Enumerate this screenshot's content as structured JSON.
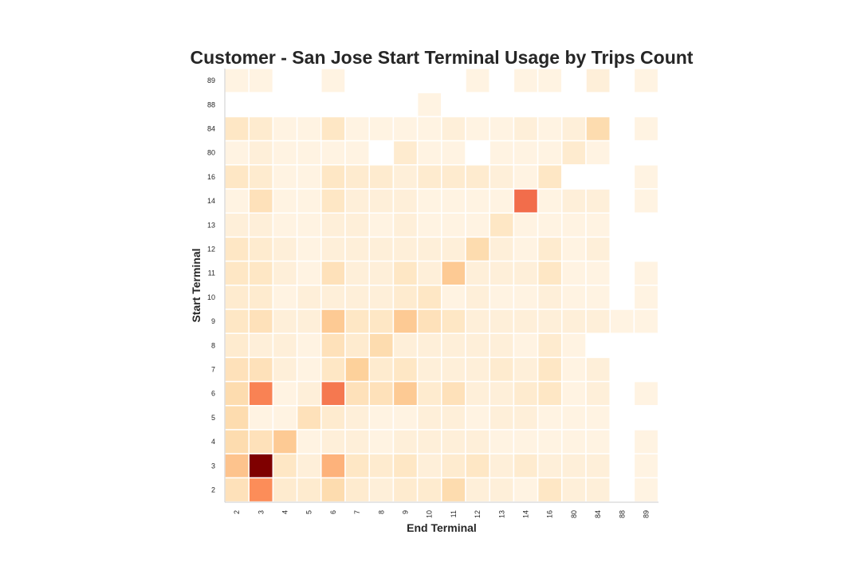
{
  "chart_data": {
    "type": "heatmap",
    "title": "Customer - San Jose Start Terminal Usage by Trips Count",
    "xlabel": "End Terminal",
    "ylabel": "Start Terminal",
    "x_categories": [
      "2",
      "3",
      "4",
      "5",
      "6",
      "7",
      "8",
      "9",
      "10",
      "11",
      "12",
      "13",
      "14",
      "16",
      "80",
      "84",
      "88",
      "89"
    ],
    "y_categories": [
      "89",
      "88",
      "84",
      "80",
      "16",
      "14",
      "13",
      "12",
      "11",
      "10",
      "9",
      "8",
      "7",
      "6",
      "5",
      "4",
      "3",
      "2"
    ],
    "values": [
      [
        1,
        1,
        null,
        null,
        1,
        null,
        null,
        null,
        null,
        null,
        1,
        null,
        1,
        1,
        null,
        2,
        null,
        1
      ],
      [
        null,
        null,
        null,
        null,
        null,
        null,
        null,
        null,
        1,
        null,
        null,
        null,
        null,
        null,
        null,
        null,
        null,
        null
      ],
      [
        4,
        3,
        1,
        1,
        4,
        1,
        1,
        1,
        1,
        2,
        1,
        1,
        2,
        1,
        2,
        6,
        null,
        1
      ],
      [
        1,
        2,
        1,
        1,
        1,
        1,
        null,
        3,
        1,
        1,
        null,
        1,
        1,
        1,
        3,
        1,
        null,
        null
      ],
      [
        4,
        3,
        1,
        1,
        4,
        3,
        3,
        2,
        3,
        3,
        3,
        2,
        1,
        4,
        null,
        null,
        null,
        1
      ],
      [
        1,
        5,
        1,
        1,
        4,
        2,
        2,
        2,
        1,
        1,
        1,
        1,
        18,
        1,
        2,
        2,
        null,
        1
      ],
      [
        2,
        2,
        1,
        1,
        2,
        2,
        1,
        2,
        1,
        1,
        1,
        4,
        1,
        1,
        1,
        1,
        null,
        null
      ],
      [
        4,
        3,
        2,
        1,
        2,
        2,
        2,
        2,
        2,
        2,
        6,
        2,
        1,
        3,
        1,
        2,
        null,
        null
      ],
      [
        4,
        4,
        2,
        1,
        5,
        2,
        2,
        4,
        2,
        9,
        2,
        2,
        2,
        4,
        1,
        1,
        null,
        1
      ],
      [
        3,
        3,
        1,
        2,
        2,
        2,
        2,
        3,
        4,
        1,
        2,
        1,
        1,
        2,
        1,
        1,
        null,
        1
      ],
      [
        4,
        5,
        2,
        2,
        9,
        4,
        4,
        9,
        5,
        4,
        2,
        2,
        2,
        2,
        2,
        2,
        1,
        1
      ],
      [
        3,
        2,
        2,
        1,
        5,
        3,
        6,
        2,
        2,
        2,
        2,
        2,
        1,
        3,
        1,
        null,
        null,
        null
      ],
      [
        5,
        5,
        2,
        1,
        4,
        8,
        3,
        4,
        2,
        2,
        2,
        3,
        2,
        4,
        1,
        2,
        null,
        null
      ],
      [
        6,
        16,
        1,
        2,
        17,
        5,
        5,
        9,
        3,
        5,
        2,
        2,
        3,
        4,
        1,
        2,
        null,
        1
      ],
      [
        6,
        1,
        1,
        5,
        3,
        2,
        1,
        1,
        2,
        2,
        1,
        2,
        2,
        1,
        1,
        1,
        null,
        null
      ],
      [
        6,
        5,
        9,
        1,
        2,
        2,
        1,
        2,
        2,
        2,
        2,
        1,
        1,
        1,
        1,
        1,
        null,
        1
      ],
      [
        10,
        30,
        4,
        2,
        12,
        4,
        3,
        4,
        2,
        3,
        4,
        2,
        3,
        2,
        2,
        2,
        null,
        1
      ],
      [
        5,
        15,
        3,
        3,
        6,
        3,
        2,
        3,
        3,
        6,
        2,
        2,
        1,
        4,
        2,
        2,
        null,
        1
      ]
    ],
    "colormap": "OrRd",
    "vmin": 0,
    "vmax": 30,
    "colorbar": false,
    "grid": false
  }
}
